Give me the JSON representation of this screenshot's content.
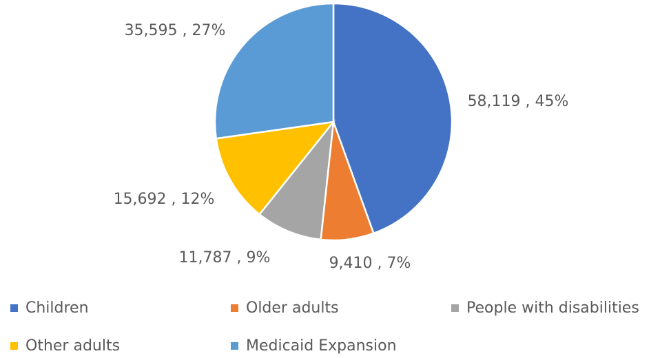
{
  "chart_data": {
    "type": "pie",
    "categories": [
      "Children",
      "Older adults",
      "People with disabilities",
      "Other adults",
      "Medicaid Expansion"
    ],
    "values": [
      58119,
      9410,
      11787,
      15692,
      35595
    ],
    "value_labels": [
      "58,119 , 45%",
      "9,410 , 7%",
      "11,787 , 9%",
      "15,692 , 12%",
      "35,595 , 27%"
    ],
    "colors": [
      "#4472c4",
      "#ed7d31",
      "#a5a5a5",
      "#ffc000",
      "#5b9bd5"
    ],
    "legend": "bottom"
  }
}
